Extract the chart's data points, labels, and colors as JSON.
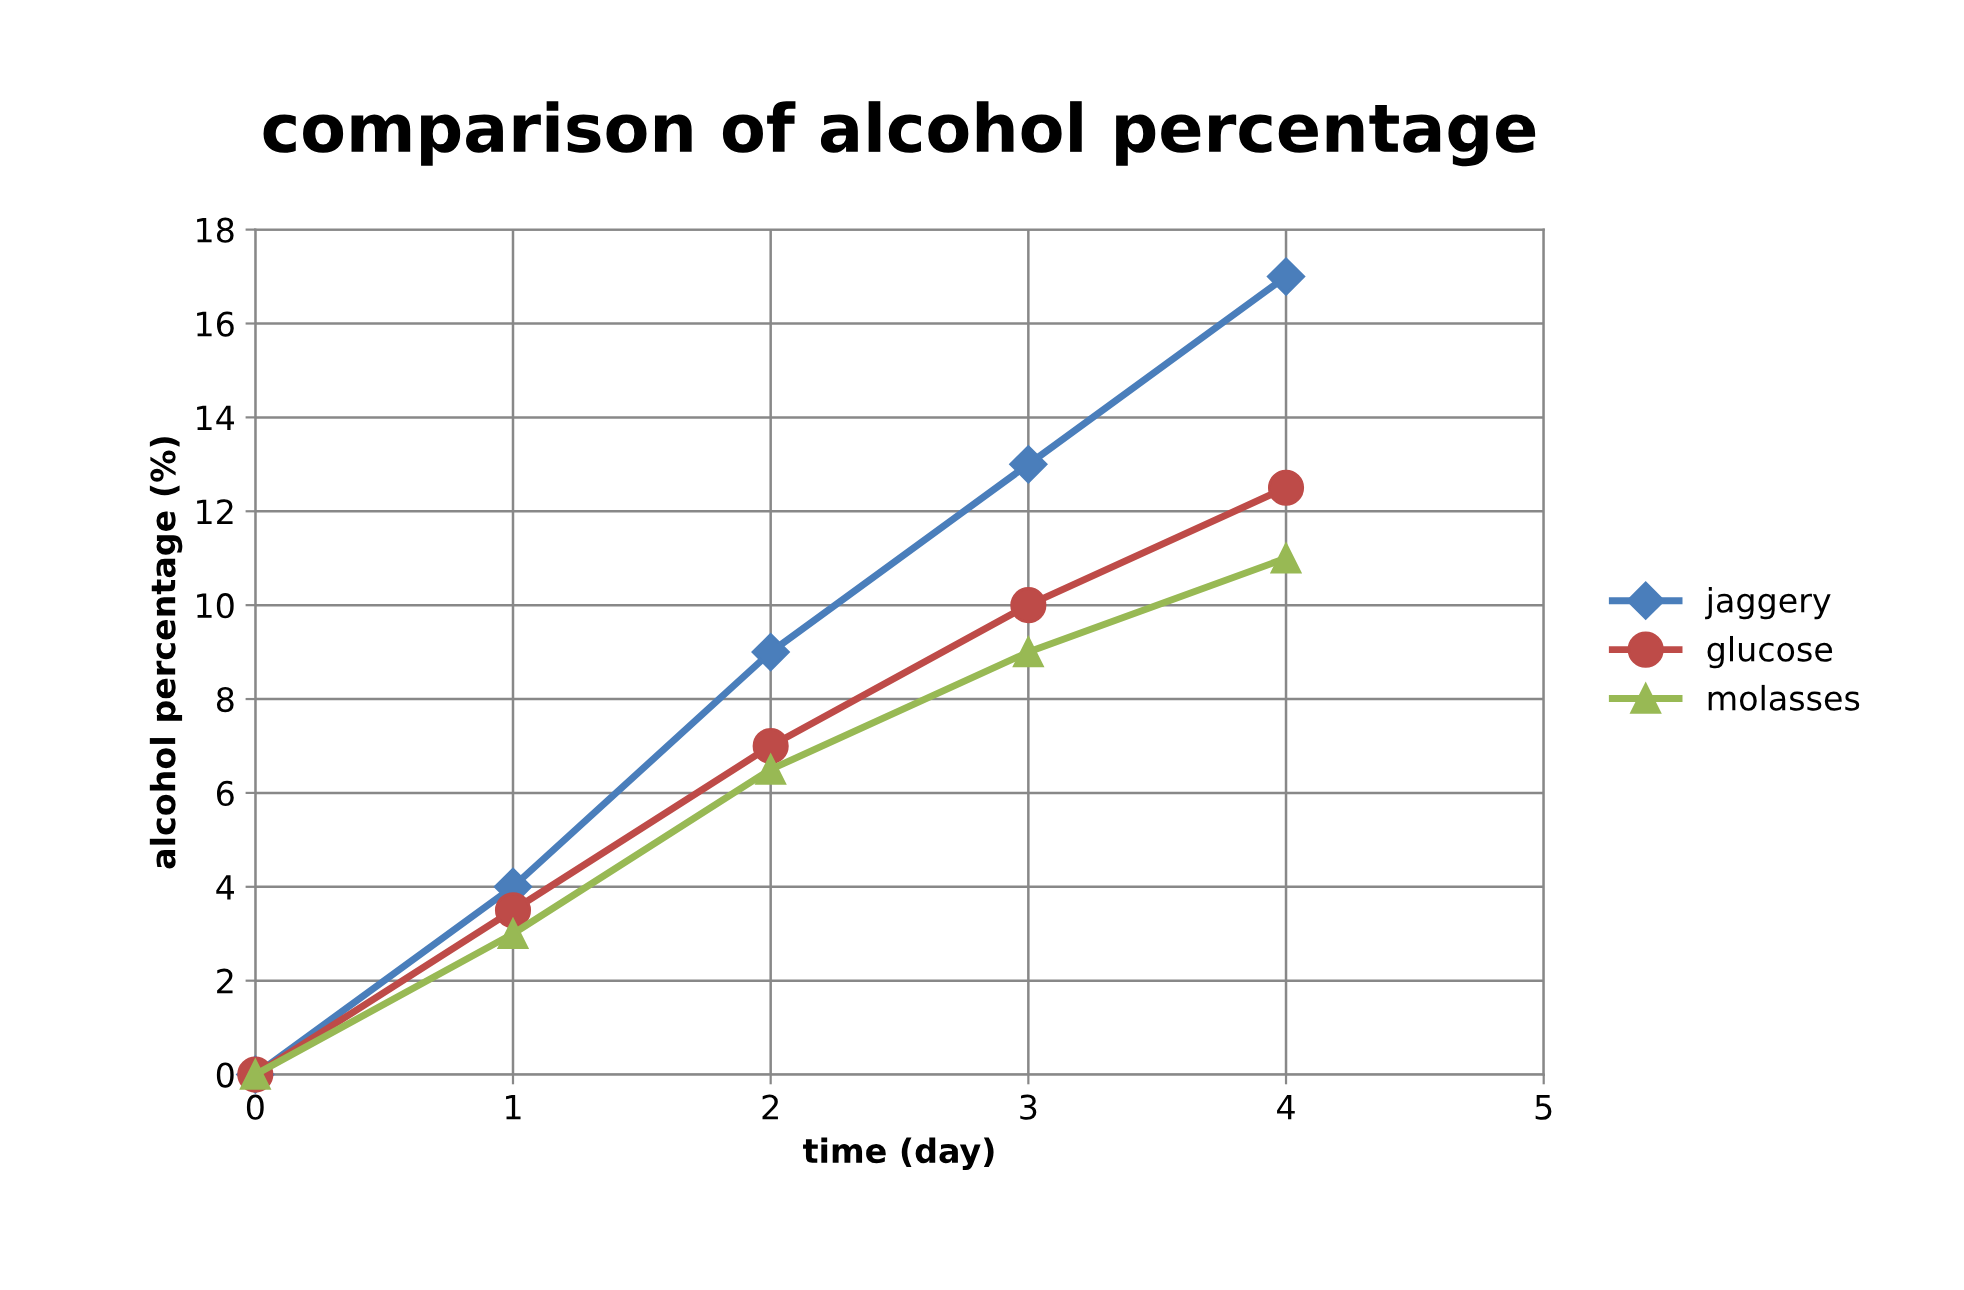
{
  "chart_data": {
    "type": "line",
    "title": "comparison of alcohol percentage",
    "xlabel": "time (day)",
    "ylabel": "alcohol percentage (%)",
    "x": [
      0,
      1,
      2,
      3,
      4
    ],
    "series": [
      {
        "name": "jaggery",
        "color": "#4a7ebb",
        "marker": "diamond",
        "values": [
          0,
          4,
          9,
          13,
          17
        ]
      },
      {
        "name": "glucose",
        "color": "#be4b48",
        "marker": "circle",
        "values": [
          0,
          3.5,
          7,
          10,
          12.5
        ]
      },
      {
        "name": "molasses",
        "color": "#98b954",
        "marker": "triangle",
        "values": [
          0,
          3,
          6.5,
          9,
          11
        ]
      }
    ],
    "xlim": [
      0,
      5
    ],
    "xticks": [
      0,
      1,
      2,
      3,
      4,
      5
    ],
    "ylim": [
      0,
      18
    ],
    "yticks": [
      0,
      2,
      4,
      6,
      8,
      10,
      12,
      14,
      16,
      18
    ],
    "grid": true,
    "legend": "right",
    "line_style": "solid"
  }
}
